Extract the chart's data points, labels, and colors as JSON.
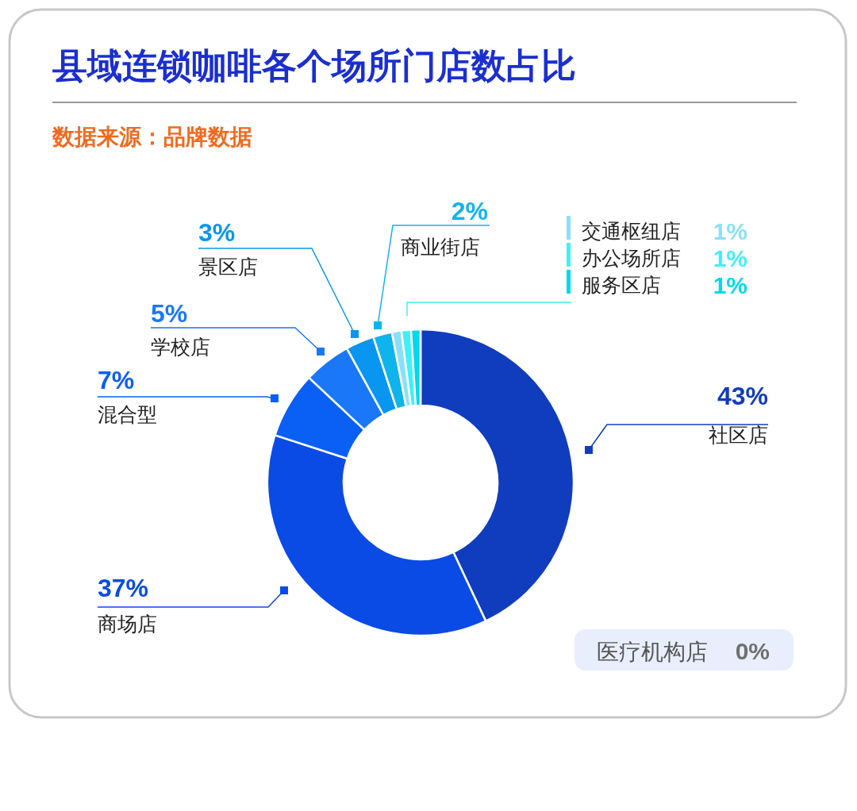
{
  "chart_data": {
    "type": "donut",
    "title": "县域连锁咖啡各个场所门店数占比",
    "subtitle": "数据来源：品牌数据",
    "categories": [
      "社区店",
      "商场店",
      "混合型",
      "学校店",
      "景区店",
      "商业街店",
      "交通枢纽店",
      "办公场所店",
      "服务区店",
      "医疗机构店"
    ],
    "values": [
      43,
      37,
      7,
      5,
      3,
      2,
      1,
      1,
      1,
      0
    ],
    "legend": "top right",
    "value_labels": [
      "43%",
      "37%",
      "7%",
      "5%",
      "3%",
      "2%",
      "1%",
      "1%",
      "1%",
      "0%"
    ],
    "colors": [
      "#103cbe",
      "#0a4be6",
      "#0a60f5",
      "#1a78f8",
      "#0896f0",
      "#10b4ec",
      "#8ae0f8",
      "#40f0f8",
      "#00d8ec",
      "#707070"
    ]
  }
}
